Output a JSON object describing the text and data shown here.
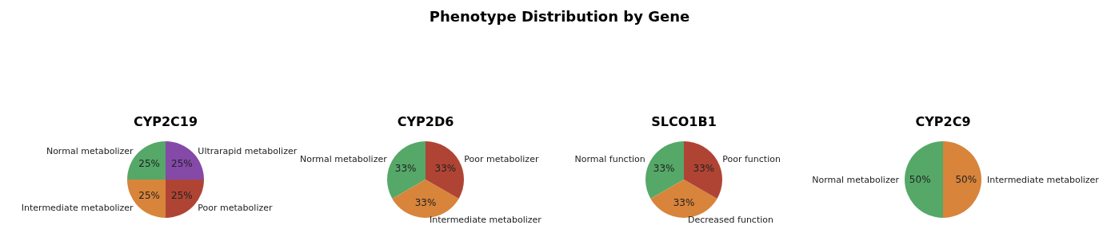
{
  "chart_data": [
    {
      "type": "pie",
      "title": "CYP2C19",
      "annotations": [
        "Phenotype Distribution by Gene"
      ],
      "categories": [
        "Normal metabolizer",
        "Intermediate metabolizer",
        "Poor metabolizer",
        "Ultrarapid metabolizer"
      ],
      "values": [
        25,
        25,
        25,
        25
      ],
      "value_labels": [
        "25%",
        "25%",
        "25%",
        "25%"
      ],
      "colors": [
        "#55a868",
        "#d8843b",
        "#b04434",
        "#8549a8"
      ]
    },
    {
      "type": "pie",
      "title": "CYP2D6",
      "categories": [
        "Normal metabolizer",
        "Intermediate metabolizer",
        "Poor metabolizer"
      ],
      "values": [
        33.3,
        33.4,
        33.3
      ],
      "value_labels": [
        "33%",
        "33%",
        "33%"
      ],
      "colors": [
        "#55a868",
        "#d8843b",
        "#b04434"
      ]
    },
    {
      "type": "pie",
      "title": "SLCO1B1",
      "categories": [
        "Normal function",
        "Decreased function",
        "Poor function"
      ],
      "values": [
        33.3,
        33.4,
        33.3
      ],
      "value_labels": [
        "33%",
        "33%",
        "33%"
      ],
      "colors": [
        "#55a868",
        "#d8843b",
        "#b04434"
      ]
    },
    {
      "type": "pie",
      "title": "CYP2C9",
      "categories": [
        "Normal metabolizer",
        "Intermediate metabolizer"
      ],
      "values": [
        50,
        50
      ],
      "value_labels": [
        "50%",
        "50%"
      ],
      "colors": [
        "#55a868",
        "#d8843b"
      ]
    }
  ]
}
